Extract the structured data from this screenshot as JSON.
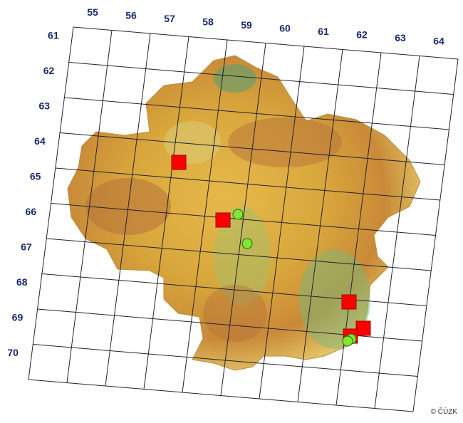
{
  "columns": [
    "55",
    "56",
    "57",
    "58",
    "59",
    "60",
    "61",
    "62",
    "63",
    "64"
  ],
  "rows": [
    "61",
    "62",
    "63",
    "64",
    "65",
    "66",
    "67",
    "68",
    "69",
    "70"
  ],
  "credit": "© ČÚZK"
}
